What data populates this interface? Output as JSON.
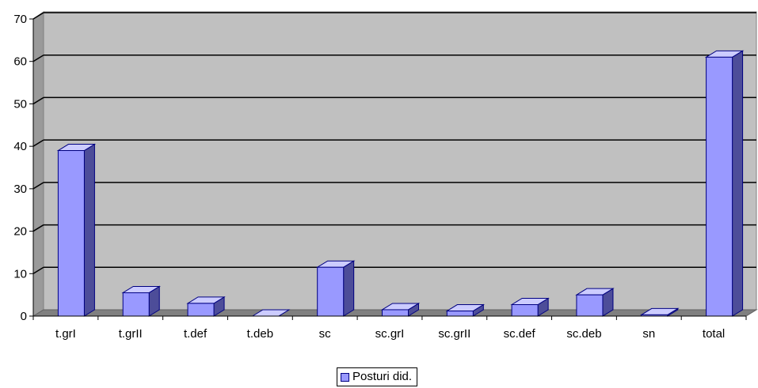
{
  "chart_data": {
    "type": "bar",
    "categories": [
      "t.grI",
      "t.grII",
      "t.def",
      "t.deb",
      "sc",
      "sc.grI",
      "sc.grII",
      "sc.def",
      "sc.deb",
      "sn",
      "total"
    ],
    "series": [
      {
        "name": "Posturi did.",
        "values": [
          39,
          5.5,
          3,
          0,
          11.5,
          1.5,
          1.2,
          2.7,
          5,
          0.3,
          61
        ]
      }
    ],
    "yticks": [
      0,
      10,
      20,
      30,
      40,
      50,
      60,
      70
    ],
    "ylim": [
      0,
      70
    ],
    "grid": true,
    "legend": "bottom-center",
    "colors": {
      "bar_front": "#9999ff",
      "bar_top": "#ccccff",
      "bar_side": "#4d4d99",
      "bar_outline": "#000080",
      "plot_back": "#c0c0c0",
      "plot_floor": "#808080"
    }
  }
}
